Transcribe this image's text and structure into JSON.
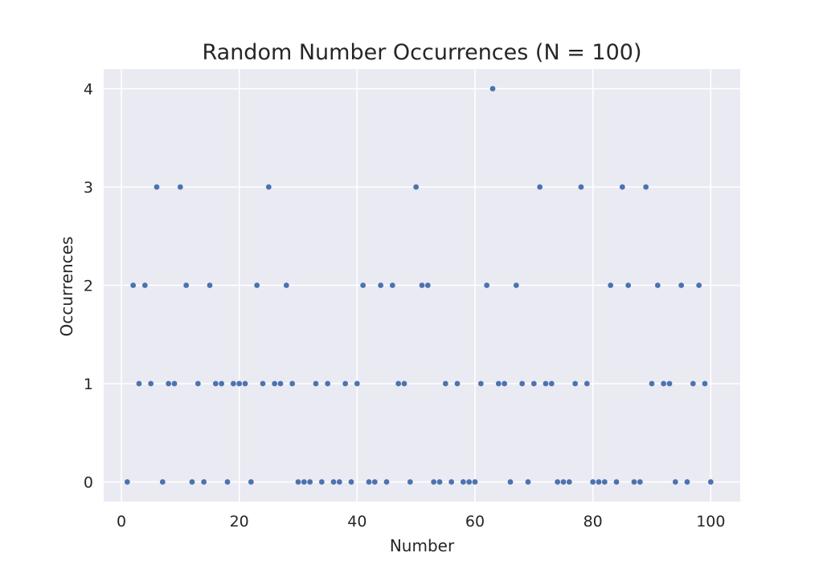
{
  "chart_data": {
    "type": "scatter",
    "title": "Random Number Occurrences (N = 100)",
    "xlabel": "Number",
    "ylabel": "Occurrences",
    "xlim": [
      -3,
      105
    ],
    "ylim": [
      -0.2,
      4.2
    ],
    "xticks": [
      0,
      20,
      40,
      60,
      80,
      100
    ],
    "yticks": [
      0,
      1,
      2,
      3,
      4
    ],
    "grid": true,
    "background": "#eaeaf2",
    "point_color": "#4c72b0",
    "series": [
      {
        "x": [
          1,
          2,
          3,
          4,
          5,
          6,
          7,
          8,
          9,
          10,
          11,
          12,
          13,
          14,
          15,
          16,
          17,
          18,
          19,
          20,
          21,
          22,
          23,
          24,
          25,
          26,
          27,
          28,
          29,
          30,
          31,
          32,
          33,
          34,
          35,
          36,
          37,
          38,
          39,
          40,
          41,
          42,
          43,
          44,
          45,
          46,
          47,
          48,
          49,
          50,
          51,
          52,
          53,
          54,
          55,
          56,
          57,
          58,
          59,
          60,
          61,
          62,
          63,
          64,
          65,
          66,
          67,
          68,
          69,
          70,
          71,
          72,
          73,
          74,
          75,
          76,
          77,
          78,
          79,
          80,
          81,
          82,
          83,
          84,
          85,
          86,
          87,
          88,
          89,
          90,
          91,
          92,
          93,
          94,
          95,
          96,
          97,
          98,
          99,
          100
        ],
        "y": [
          0,
          2,
          1,
          2,
          1,
          3,
          0,
          1,
          1,
          3,
          2,
          0,
          1,
          0,
          2,
          1,
          1,
          0,
          1,
          1,
          1,
          0,
          2,
          1,
          3,
          1,
          1,
          2,
          1,
          0,
          0,
          0,
          1,
          0,
          1,
          0,
          0,
          1,
          0,
          1,
          2,
          0,
          0,
          2,
          0,
          2,
          1,
          1,
          0,
          3,
          2,
          2,
          0,
          0,
          1,
          0,
          1,
          0,
          0,
          0,
          1,
          2,
          4,
          1,
          1,
          0,
          2,
          1,
          0,
          1,
          3,
          1,
          1,
          0,
          0,
          0,
          1,
          3,
          1,
          0,
          0,
          0,
          2,
          0,
          3,
          2,
          0,
          0,
          3,
          1,
          2,
          1,
          1,
          0,
          2,
          0,
          1,
          2,
          1,
          0
        ]
      }
    ]
  }
}
